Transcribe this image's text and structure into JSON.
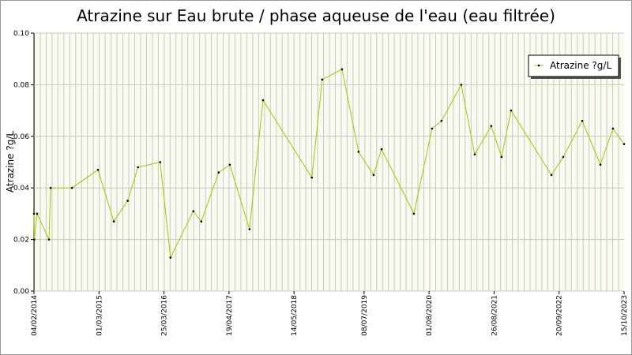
{
  "chart_data": {
    "type": "line",
    "title": "Atrazine sur Eau brute / phase aqueuse de l'eau (eau filtrée)",
    "ylabel": "Atrazine ?g/L",
    "x": [
      "04/02/2014",
      "06/02/2014",
      "23/02/2014",
      "05/05/2014",
      "15/05/2014",
      "20/09/2014",
      "23/02/2015",
      "29/05/2015",
      "20/08/2015",
      "21/10/2015",
      "02/03/2016",
      "03/05/2016",
      "17/09/2016",
      "04/11/2016",
      "16/02/2017",
      "24/04/2017",
      "20/08/2017",
      "09/11/2017",
      "29/08/2018",
      "30/10/2018",
      "26/02/2019",
      "05/06/2019",
      "03/09/2019",
      "21/10/2019",
      "02/05/2020",
      "19/08/2020",
      "15/10/2020",
      "10/02/2021",
      "02/05/2021",
      "09/08/2021",
      "10/10/2021",
      "06/12/2021",
      "05/08/2022",
      "15/10/2022",
      "06/02/2023",
      "26/05/2023",
      "09/08/2023",
      "15/10/2023"
    ],
    "series": [
      {
        "name": "Atrazine ?g/L",
        "color": "#99cc00",
        "marker_color": "#000000",
        "values": [
          0.03,
          0.02,
          0.03,
          0.02,
          0.04,
          0.04,
          0.047,
          0.027,
          0.035,
          0.048,
          0.05,
          0.013,
          0.031,
          0.027,
          0.046,
          0.049,
          0.024,
          0.074,
          0.044,
          0.082,
          0.086,
          0.054,
          0.045,
          0.055,
          0.03,
          0.063,
          0.066,
          0.08,
          0.053,
          0.064,
          0.052,
          0.07,
          0.045,
          0.052,
          0.066,
          0.049,
          0.063,
          0.057
        ]
      }
    ],
    "xlim": [
      "04/02/2014",
      "15/10/2023"
    ],
    "xticks": [
      "04/02/2014",
      "01/03/2015",
      "25/03/2016",
      "19/04/2017",
      "14/05/2018",
      "08/07/2019",
      "01/08/2020",
      "26/08/2021",
      "20/09/2022",
      "15/10/2023"
    ],
    "ylim": [
      0,
      0.1
    ],
    "yticks": [
      {
        "value": 0,
        "label": "0.00"
      },
      0.02,
      0.04,
      0.06,
      0.08,
      {
        "value": 0.1,
        "label": "0.10"
      }
    ],
    "grid": true,
    "legend": "top-right"
  }
}
